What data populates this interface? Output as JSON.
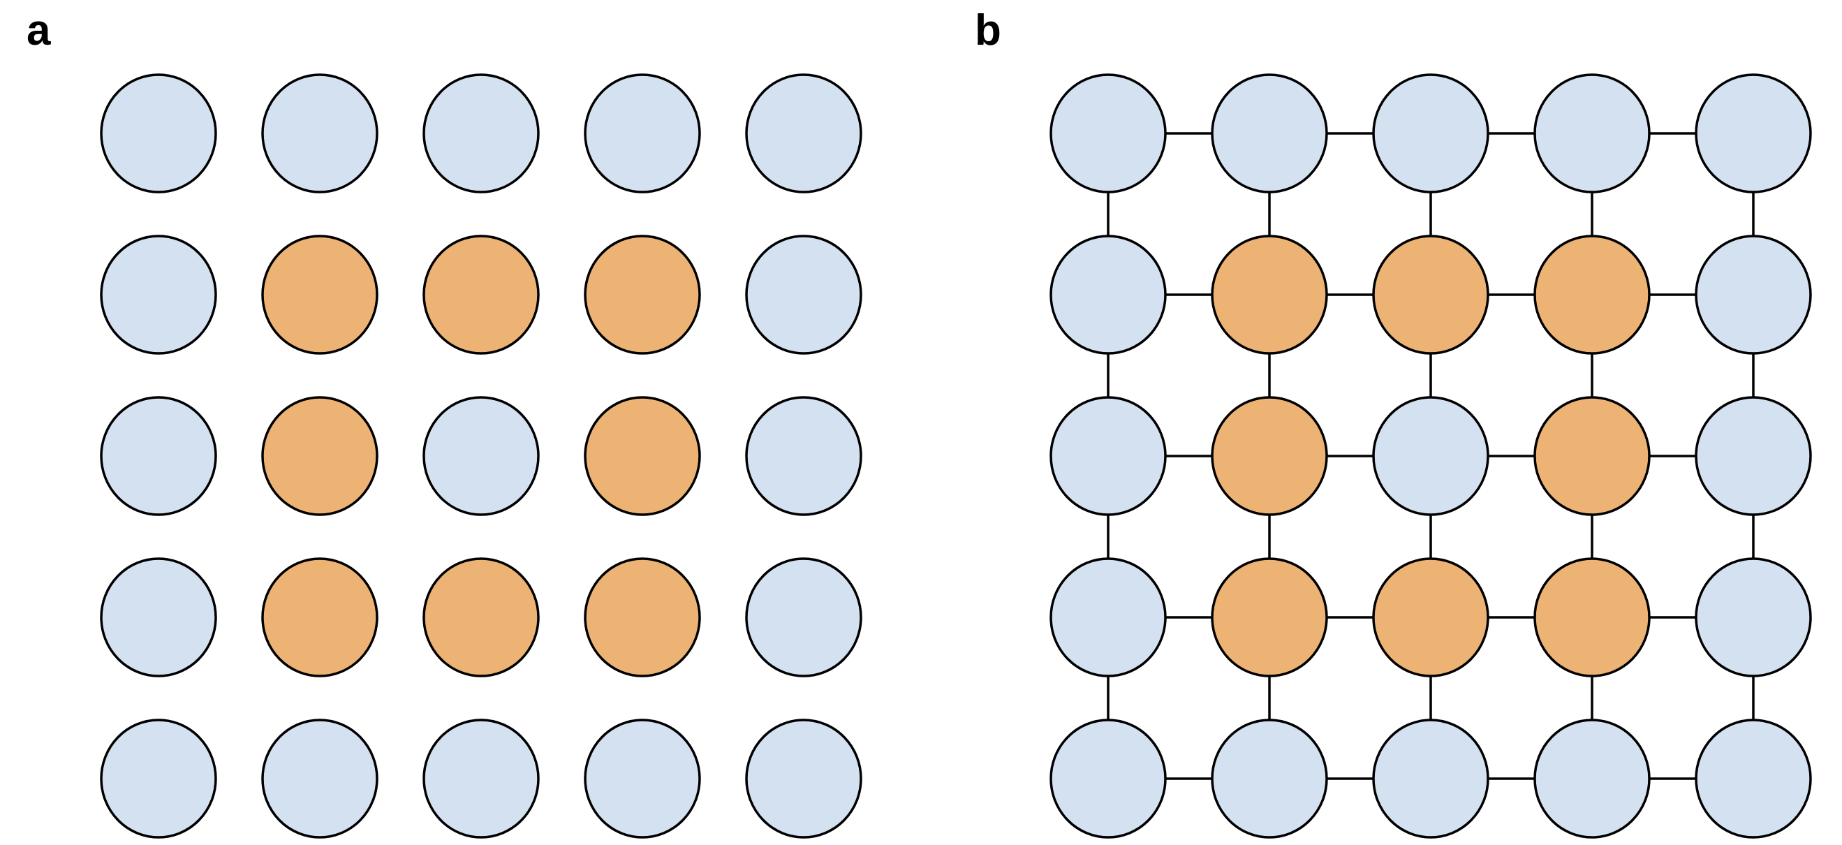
{
  "colors": {
    "light": "#d4e1f0",
    "orange": "#ecb375",
    "stroke": "#000000"
  },
  "panels": [
    {
      "label": "a",
      "connected": false,
      "grid": [
        [
          "light",
          "light",
          "light",
          "light",
          "light"
        ],
        [
          "light",
          "orange",
          "orange",
          "orange",
          "light"
        ],
        [
          "light",
          "orange",
          "light",
          "orange",
          "light"
        ],
        [
          "light",
          "orange",
          "orange",
          "orange",
          "light"
        ],
        [
          "light",
          "light",
          "light",
          "light",
          "light"
        ]
      ]
    },
    {
      "label": "b",
      "connected": true,
      "grid": [
        [
          "light",
          "light",
          "light",
          "light",
          "light"
        ],
        [
          "light",
          "orange",
          "orange",
          "orange",
          "light"
        ],
        [
          "light",
          "orange",
          "light",
          "orange",
          "light"
        ],
        [
          "light",
          "orange",
          "orange",
          "orange",
          "light"
        ],
        [
          "light",
          "light",
          "light",
          "light",
          "light"
        ]
      ]
    }
  ]
}
